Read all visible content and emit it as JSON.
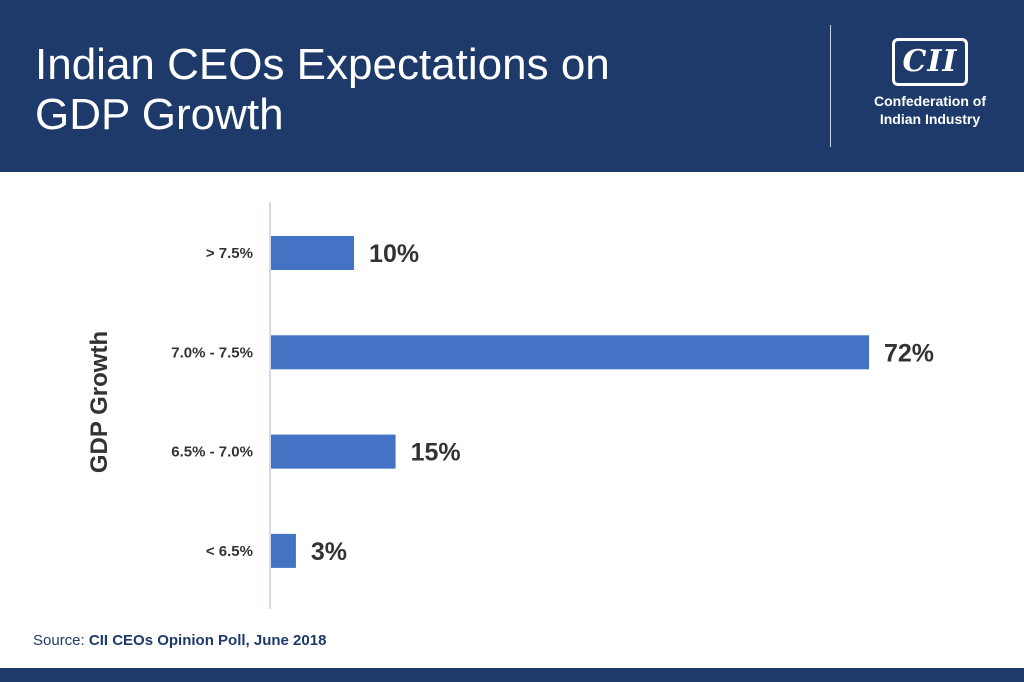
{
  "header": {
    "title": "Indian CEOs Expectations on\nGDP Growth",
    "logo_mark": "CII",
    "logo_text": "Confederation of\nIndian Industry"
  },
  "source": {
    "label": "Source: ",
    "value": "CII CEOs Opinion Poll, June 2018"
  },
  "colors": {
    "header_bg": "#1e3a6b",
    "bar": "#4472c4",
    "text_dark": "#333333"
  },
  "chart_data": {
    "type": "bar",
    "orientation": "horizontal",
    "title": "Indian CEOs Expectations on GDP Growth",
    "ylabel": "GDP Growth",
    "xlabel": "",
    "categories": [
      "> 7.5%",
      "7.0% - 7.5%",
      "6.5% - 7.0%",
      "< 6.5%"
    ],
    "values": [
      10,
      72,
      15,
      3
    ],
    "value_labels": [
      "10%",
      "72%",
      "15%",
      "3%"
    ],
    "xlim": [
      0,
      72
    ],
    "grid": false,
    "legend": "none"
  }
}
